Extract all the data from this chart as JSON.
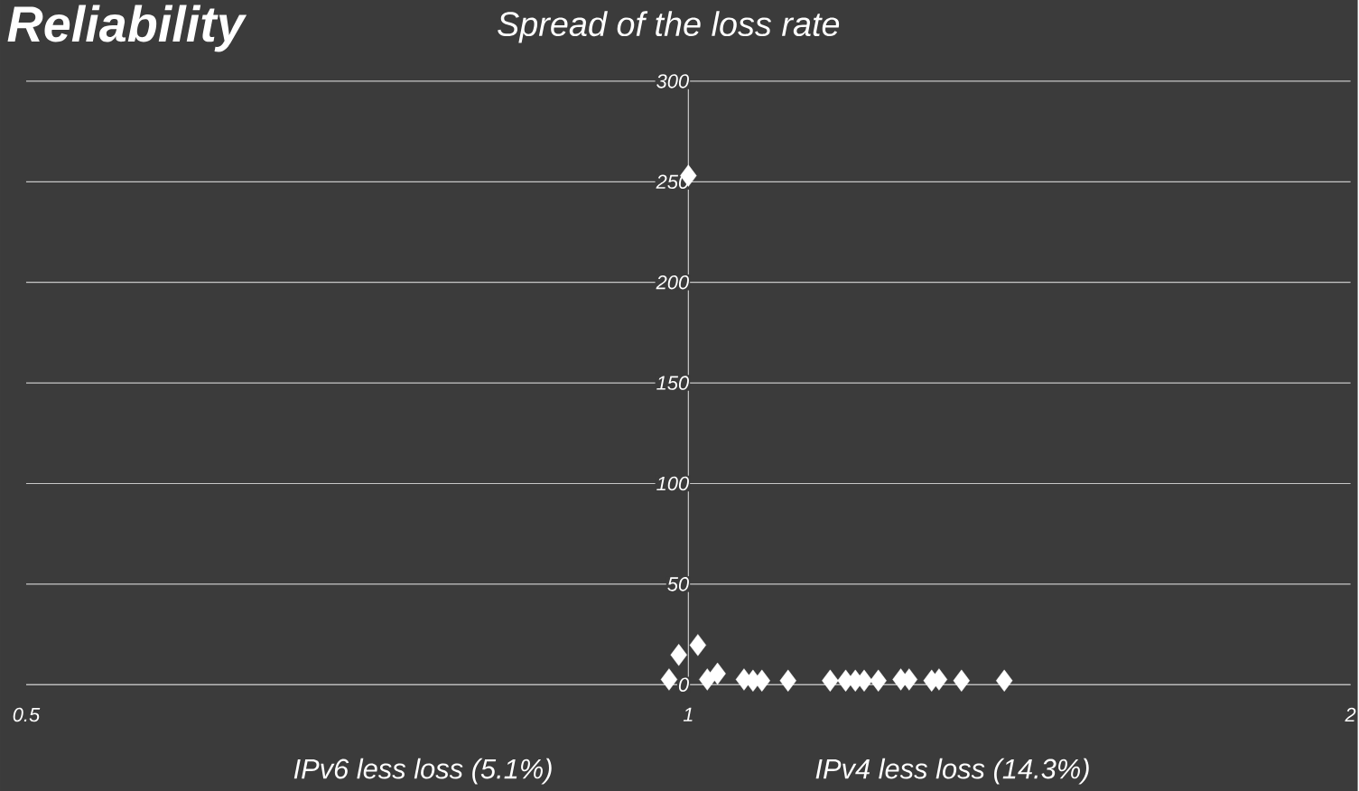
{
  "chart_data": {
    "type": "scatter",
    "title": "Reliability",
    "subtitle": "Spread of the loss rate",
    "annotations": [
      "IPv6 less loss (5.1%)",
      "IPv4 less loss (14.3%)"
    ],
    "x": [
      0.98,
      0.99,
      1.0,
      1.01,
      1.02,
      1.031,
      1.06,
      1.07,
      1.08,
      1.11,
      1.16,
      1.179,
      1.191,
      1.202,
      1.22,
      1.249,
      1.26,
      1.29,
      1.3,
      1.331,
      1.392
    ],
    "series": [
      {
        "color": "#ffffff",
        "values": [
          2.6,
          14.8,
          253,
          19.7,
          2.6,
          5.5,
          2.6,
          2,
          2,
          2,
          2,
          2,
          2,
          2,
          2,
          2.6,
          2.6,
          2,
          2.6,
          2,
          2
        ]
      }
    ],
    "log": "x",
    "xlim": [
      0.5,
      2
    ],
    "xticks": [
      0.5,
      1,
      2
    ],
    "ylim": [
      0,
      300
    ],
    "yticks": [
      0,
      50,
      100,
      150,
      200,
      250,
      300
    ],
    "grid": "y",
    "marker": "diamond"
  }
}
